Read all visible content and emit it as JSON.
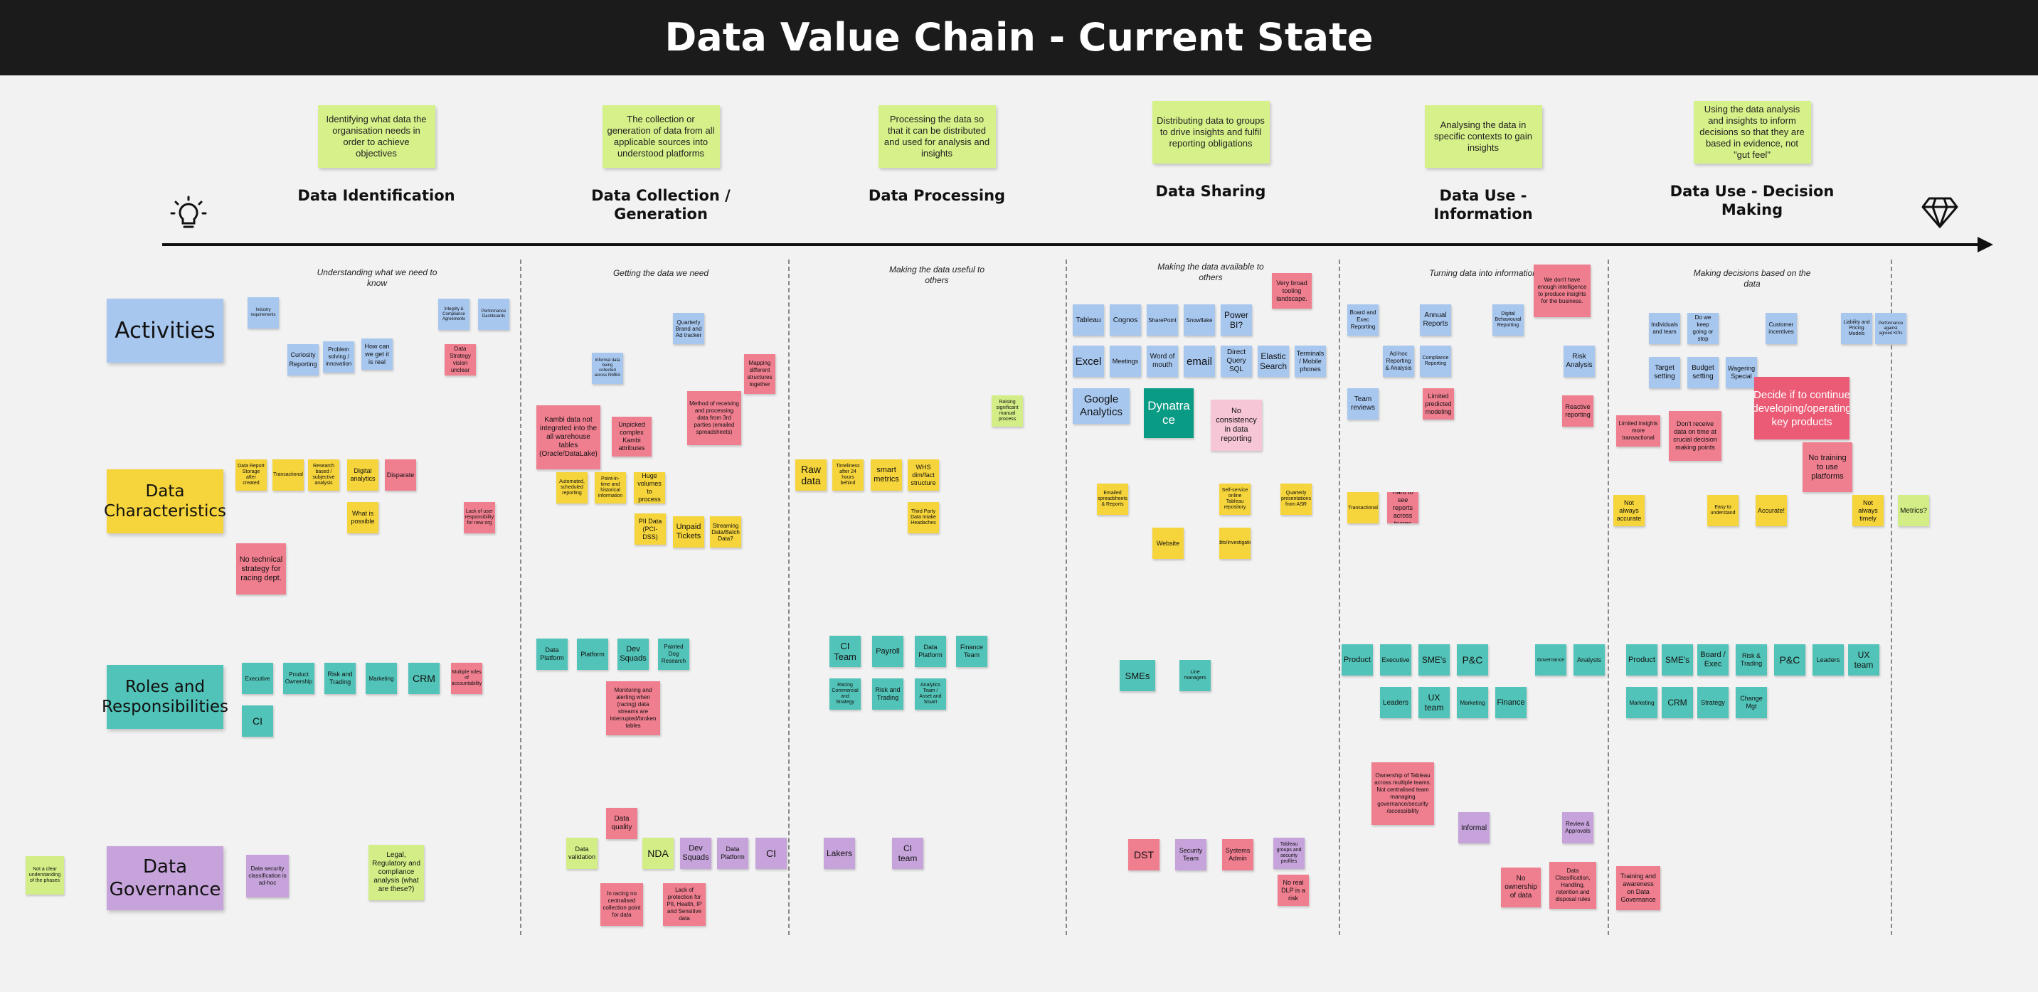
{
  "title": "Data Value Chain - Current State",
  "phases": [
    {
      "desc": "Identifying what data the organisation needs in order to achieve objectives",
      "title": "Data Identification",
      "subtitle": "Understanding what we need to know"
    },
    {
      "desc": "The collection or generation of data from all applicable sources into understood platforms",
      "title": "Data Collection / Generation",
      "subtitle": "Getting the data we need"
    },
    {
      "desc": "Processing the data so that it can be distributed and used for analysis and insights",
      "title": "Data Processing",
      "subtitle": "Making the data useful to others"
    },
    {
      "desc": "Distributing data to groups to drive insights and fulfil reporting obligations",
      "title": "Data Sharing",
      "subtitle": "Making the data available to others"
    },
    {
      "desc": "Analysing the data in specific contexts to gain insights",
      "title": "Data Use - Information",
      "subtitle": "Turning data into information"
    },
    {
      "desc": "Using the data analysis and insights to inform decisions so that they are based in evidence, not \"gut feel\"",
      "title": "Data Use - Decision Making",
      "subtitle": "Making decisions based on the data"
    }
  ],
  "rows": {
    "activities": "Activities",
    "characteristics": "Data Characteristics",
    "roles": "Roles and Responsibilities",
    "governance": "Data Governance"
  },
  "notes": {
    "n_id_1": "Industry requirements",
    "n_id_2": "Curiosity Reporting",
    "n_id_3": "Problem solving / innovation",
    "n_id_4": "How can we get it is real",
    "n_id_5": "Integrity & Compliance Agreements",
    "n_id_6": "Performance Dashboards",
    "n_id_7": "Data Strategy vision unclear",
    "n_id_8": "Data Report Storage after created",
    "n_id_9": "Transactional",
    "n_id_10": "Research based / subjective analysis",
    "n_id_11": "Digital analytics",
    "n_id_12": "Disparate",
    "n_id_13": "What is possible",
    "n_id_14": "Lack of user responsibility for new org",
    "n_id_15": "No technical strategy for racing dept.",
    "n_id_16": "Executive",
    "n_id_17": "Product Ownership",
    "n_id_18": "Risk and Trading",
    "n_id_19": "Marketing",
    "n_id_20": "CRM",
    "n_id_21": "Multiple roles of accountability",
    "n_id_22": "CI",
    "n_id_23": "Data security classification is ad-hoc",
    "n_id_24": "Legal, Regulatory and compliance analysis (what are these?)",
    "n_id_25": "Not a clear understanding of the phases",
    "n_col_1": "Quarterly Brand and Ad tracker",
    "n_col_2": "Informal data being collected across NMBA",
    "n_col_3": "Kambi data not integrated into the all warehouse tables (Oracle/DataLake)",
    "n_col_4": "Unpicked complex Kambi attributes",
    "n_col_5": "Method of receiving and processing data from 3rd parties (emailed spreadsheets)",
    "n_col_6": "Mapping different structures together",
    "n_col_7": "Automated, scheduled reporting",
    "n_col_8": "Point-in-time and historical information",
    "n_col_9": "Huge volumes to process",
    "n_col_10": "PII Data (PCI-DSS)",
    "n_col_11": "Unpaid Tickets",
    "n_col_12": "Streaming Data/Batch Data?",
    "n_col_13": "Data Platform",
    "n_col_14": "Platform",
    "n_col_15": "Dev Squads",
    "n_col_16": "Painted Dog Research",
    "n_col_17": "Monitoring and alerting when (racing) data streams are interrupted/broken tables",
    "n_col_18": "Data quality",
    "n_col_19": "Data validation",
    "n_col_20": "NDA",
    "n_col_21": "Dev Squads",
    "n_col_22": "Data Platform",
    "n_col_23": "CI",
    "n_col_24": "In racing no centralised collection point for data",
    "n_col_25": "Lack of protection for PII, Health, IP and Sensitive data",
    "n_proc_1": "Raw data",
    "n_proc_2": "Timeliness after 24 hours behind",
    "n_proc_3": "smart metrics",
    "n_proc_4": "WHS dim/fact structure",
    "n_proc_5": "Third Party Data Intake Headaches",
    "n_proc_6": "Raising significant manual process",
    "n_proc_7": "CI Team",
    "n_proc_8": "Payroll",
    "n_proc_9": "Data Platform",
    "n_proc_10": "Finance Team",
    "n_proc_11": "Racing Commercial and Strategy",
    "n_proc_12": "Risk and Trading",
    "n_proc_13": "Analytics Team / Asset and Stuart",
    "n_proc_14": "Lakers",
    "n_proc_15": "CI team",
    "n_share_1": "Tableau",
    "n_share_2": "Cognos",
    "n_share_3": "SharePoint",
    "n_share_4": "Snowflake",
    "n_share_5": "Power BI?",
    "n_share_6": "Very broad tooling landscape.",
    "n_share_7": "Excel",
    "n_share_8": "Meetings",
    "n_share_9": "Word of mouth",
    "n_share_10": "email",
    "n_share_11": "Direct Query SQL",
    "n_share_12": "Elastic Search",
    "n_share_13": "Terminals / Mobile phones",
    "n_share_14": "Google Analytics",
    "n_share_15": "Dynatrace",
    "n_share_16": "No consistency in data reporting",
    "n_share_17": "Emailed spreadsheets & Reports",
    "n_share_18": "Self-service online Tableau repository",
    "n_share_19": "Quarterly presentations from ASR",
    "n_share_20": "Website",
    "n_share_21": "Audits/investigations",
    "n_share_22": "SMEs",
    "n_share_23": "Line managers",
    "n_share_24": "DST",
    "n_share_25": "Security Team",
    "n_share_26": "Systems Admin",
    "n_share_27": "Tableau groups and security profiles",
    "n_share_28": "No real DLP is a risk",
    "n_info_1": "Board and Exec Reporting",
    "n_info_2": "Annual Reports",
    "n_info_3": "Digital Behavioural Reporting",
    "n_info_4": "We don't have enough intelligence to produce insights for the business.",
    "n_info_5": "Ad-hoc Reporting & Analysis",
    "n_info_6": "Compliance Reporting",
    "n_info_7": "Risk Analysis",
    "n_info_8": "Team reviews",
    "n_info_9": "Limited predicted modeling",
    "n_info_10": "Reactive reporting",
    "n_info_11": "Transactional",
    "n_info_12": "Hard to see reports across teams",
    "n_info_13": "Product",
    "n_info_14": "Executive",
    "n_info_15": "SME's",
    "n_info_16": "P&C",
    "n_info_17": "Governance",
    "n_info_18": "Analysts",
    "n_info_19": "Leaders",
    "n_info_20": "UX team",
    "n_info_21": "Marketing",
    "n_info_22": "Finance",
    "n_info_23": "Ownership of Tableau across multiple teams. Not centralised team managing governance/security /accessibility",
    "n_info_24": "Informal",
    "n_info_25": "Review & Approvals",
    "n_info_26": "No ownership of data",
    "n_info_27": "Data Classification, Handling, retention and disposal rules",
    "n_dec_1": "Individuals and team",
    "n_dec_2": "Do we keep going or stop",
    "n_dec_3": "Customer incentives",
    "n_dec_4": "Liability and Pricing Models",
    "n_dec_5": "Performance against agreed KPIs",
    "n_dec_6": "Target setting",
    "n_dec_7": "Budget setting",
    "n_dec_8": "Wagering Special",
    "n_dec_9": "Decide if to continue developing/operating key products",
    "n_dec_10": "Limited insights more transactional",
    "n_dec_11": "Don't receive data on time at crucial decision making points",
    "n_dec_12": "No training to use platforms",
    "n_dec_13": "Not always accurate",
    "n_dec_14": "Easy to understand",
    "n_dec_15": "Accurate!",
    "n_dec_16": "Not always timely",
    "n_dec_17": "Metrics?",
    "n_dec_18": "Product",
    "n_dec_19": "SME's",
    "n_dec_20": "Board / Exec",
    "n_dec_21": "Risk & Trading",
    "n_dec_22": "P&C",
    "n_dec_23": "Leaders",
    "n_dec_24": "UX team",
    "n_dec_25": "Marketing",
    "n_dec_26": "CRM",
    "n_dec_27": "Strategy",
    "n_dec_28": "Change Mgt",
    "n_dec_29": "Training and awareness on Data Governance"
  },
  "colors": {
    "header": "#1b1b1b",
    "blue": "#a7c7ef",
    "pink": "#ef7e8f",
    "yellow": "#f6d43b",
    "green": "#d3ee86",
    "teal": "#52c3b8",
    "purple": "#c6a3da"
  },
  "icons": [
    "lightbulb-icon",
    "diamond-icon"
  ]
}
